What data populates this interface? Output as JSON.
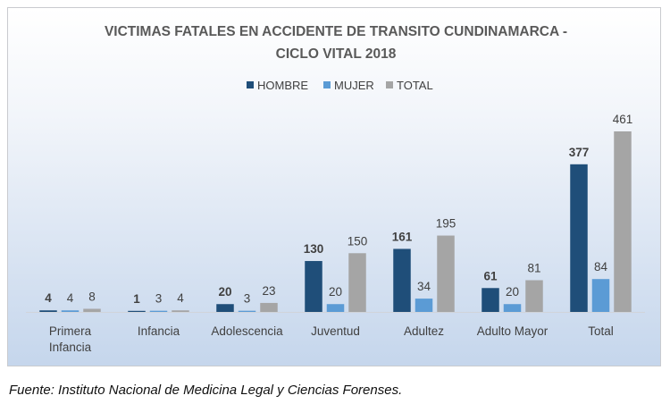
{
  "chart_data": {
    "type": "bar",
    "title": "VICTIMAS FATALES EN ACCIDENTE DE TRANSITO CUNDINAMARCA - CICLO VITAL 2018",
    "title_lines": [
      "VICTIMAS FATALES EN ACCIDENTE DE TRANSITO CUNDINAMARCA -",
      "CICLO VITAL 2018"
    ],
    "categories": [
      "Primera Infancia",
      "Infancia",
      "Adolescencia",
      "Juventud",
      "Adultez",
      "Adulto Mayor",
      "Total"
    ],
    "category_lines": [
      [
        "Primera",
        "Infancia"
      ],
      [
        "Infancia"
      ],
      [
        "Adolescencia"
      ],
      [
        "Juventud"
      ],
      [
        "Adultez"
      ],
      [
        "Adulto Mayor"
      ],
      [
        "Total"
      ]
    ],
    "series": [
      {
        "name": "HOMBRE",
        "values": [
          4,
          1,
          20,
          130,
          161,
          61,
          377
        ],
        "color": "#1f4e79",
        "bold_labels": true
      },
      {
        "name": "MUJER",
        "values": [
          4,
          3,
          3,
          20,
          34,
          20,
          84
        ],
        "color": "#5b9bd5",
        "bold_labels": false
      },
      {
        "name": "TOTAL",
        "values": [
          8,
          4,
          23,
          150,
          195,
          81,
          461
        ],
        "color": "#a5a5a5",
        "bold_labels": false
      }
    ],
    "ylim": [
      0,
      461
    ],
    "xlabel": "",
    "ylabel": "",
    "grid": false,
    "legend_position": "top"
  },
  "footnote": "Fuente: Instituto Nacional de Medicina Legal y Ciencias Forenses."
}
